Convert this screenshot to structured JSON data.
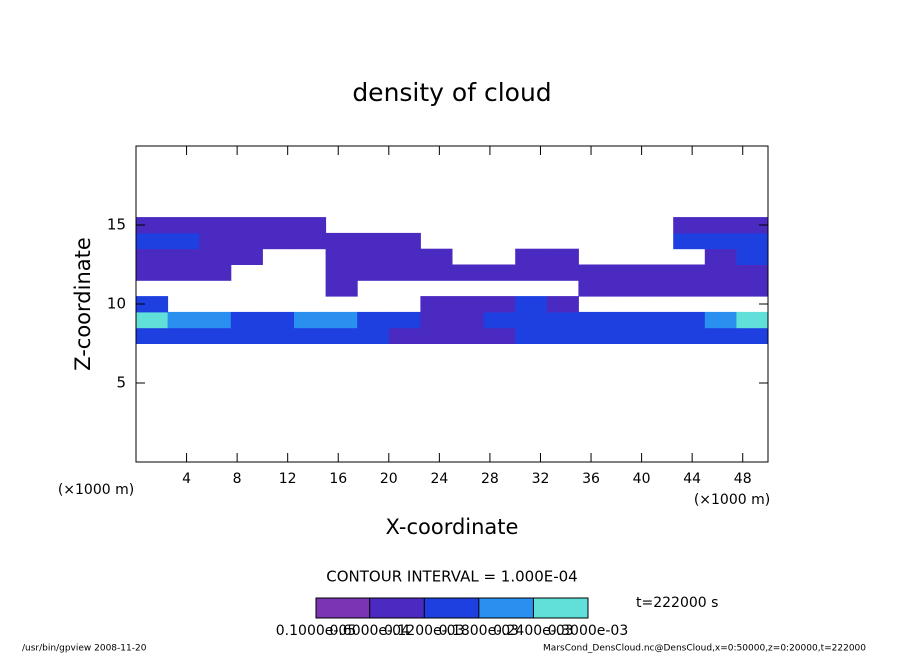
{
  "chart_data": {
    "type": "shaded-grid",
    "title": "density of cloud",
    "x_label": "X-coordinate",
    "y_label": "Z-coordinate",
    "x_unit": "(×1000 m)",
    "xlim": [
      0,
      50
    ],
    "ylim": [
      0,
      20
    ],
    "xticks": [
      4,
      8,
      12,
      16,
      20,
      24,
      28,
      32,
      36,
      40,
      44,
      48
    ],
    "yticks": [
      5,
      10,
      15
    ],
    "x_edges": [
      0,
      2.5,
      5,
      7.5,
      10,
      12.5,
      15,
      17.5,
      20,
      22.5,
      25,
      27.5,
      30,
      32.5,
      35,
      37.5,
      40,
      42.5,
      45,
      47.5,
      50
    ],
    "z_edges": [
      7.5,
      8.5,
      9.5,
      10.5,
      11.5,
      12.5,
      13.5,
      14.5,
      15.5
    ],
    "values": [
      [
        0.00014,
        0.00015,
        0.00013,
        0.00012,
        0.00012,
        0.00013,
        0.00014,
        0.00013,
        0.0001,
        8e-05,
        9e-05,
        0.0001,
        0.00012,
        0.00013,
        0.00014,
        0.00013,
        0.00012,
        0.00014,
        0.00015,
        0.00016
      ],
      [
        0.00026,
        0.00022,
        0.00018,
        0.00016,
        0.00017,
        0.00019,
        0.0002,
        0.00017,
        0.00012,
        0.0001,
        0.00011,
        0.00012,
        0.00014,
        0.00015,
        0.00016,
        0.00015,
        0.00013,
        0.00016,
        0.00019,
        0.00025
      ],
      [
        0.00012,
        null,
        null,
        null,
        null,
        null,
        null,
        null,
        null,
        8e-05,
        0.0001,
        0.00011,
        0.00012,
        0.0001,
        null,
        null,
        null,
        null,
        null,
        null
      ],
      [
        null,
        null,
        null,
        null,
        null,
        null,
        6e-05,
        null,
        null,
        null,
        null,
        null,
        null,
        null,
        8e-05,
        8e-05,
        8e-05,
        8e-05,
        8e-05,
        8e-05
      ],
      [
        9e-05,
        0.0001,
        9e-05,
        null,
        null,
        null,
        6e-05,
        7e-05,
        8e-05,
        8e-05,
        9e-05,
        0.0001,
        0.00011,
        0.0001,
        9e-05,
        8e-05,
        8e-05,
        9e-05,
        0.0001,
        0.0001
      ],
      [
        0.0001,
        0.00011,
        0.0001,
        8e-05,
        null,
        null,
        7e-05,
        8e-05,
        8e-05,
        7e-05,
        null,
        null,
        8e-05,
        9e-05,
        null,
        null,
        null,
        null,
        0.00011,
        0.00012
      ],
      [
        0.00012,
        0.00013,
        0.00011,
        0.0001,
        9e-05,
        8e-05,
        8e-05,
        9e-05,
        9e-05,
        null,
        null,
        null,
        null,
        null,
        null,
        null,
        null,
        0.00012,
        0.00014,
        0.00013
      ],
      [
        0.0001,
        0.0001,
        9e-05,
        9e-05,
        8e-05,
        7e-05,
        null,
        null,
        null,
        null,
        null,
        null,
        null,
        null,
        null,
        null,
        null,
        0.0001,
        0.00011,
        0.0001
      ]
    ],
    "contour_interval_text": "CONTOUR INTERVAL = 1.000E-04",
    "colorbar": {
      "lim": [
        1e-06,
        0.0003
      ],
      "ticks": [
        {
          "value": 1e-06,
          "label": "0.1000e-05"
        },
        {
          "value": 6e-05,
          "label": "0.6000e-04"
        },
        {
          "value": 0.00012,
          "label": "0.1200e-03"
        },
        {
          "value": 0.00018,
          "label": "0.1800e-03"
        },
        {
          "value": 0.00024,
          "label": "0.2400e-03"
        },
        {
          "value": 0.0003,
          "label": "0.3000e-03"
        }
      ],
      "colors": [
        "#7a34b4",
        "#4a2ac0",
        "#1f40e0",
        "#2a90f0",
        "#60e0d8"
      ]
    },
    "time_text": "t=222000 s",
    "footer_left": "/usr/bin/gpview   2008-11-20",
    "footer_right": "MarsCond_DensCloud.nc@DensCloud,x=0:50000,z=0:20000,t=222000"
  }
}
